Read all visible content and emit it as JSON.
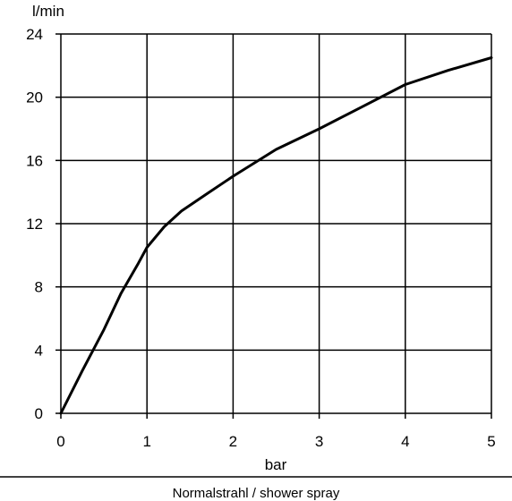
{
  "chart_data": {
    "type": "line",
    "title": "",
    "xlabel": "bar",
    "ylabel": "l/min",
    "caption": "Normalstrahl / shower spray",
    "xlim": [
      0,
      5
    ],
    "ylim": [
      0,
      24
    ],
    "x_ticks": [
      0,
      1,
      2,
      3,
      4,
      5
    ],
    "y_ticks": [
      0,
      4,
      8,
      12,
      16,
      20,
      24
    ],
    "grid": true,
    "legend": "none",
    "colors": {
      "line": "#000000",
      "grid": "#000000",
      "background": "#ffffff"
    },
    "series": [
      {
        "x": [
          0,
          0.25,
          0.5,
          0.7,
          0.9,
          1.0,
          1.2,
          1.4,
          1.7,
          2.0,
          2.5,
          3.0,
          3.5,
          4.0,
          4.5,
          5.0
        ],
        "values": [
          0,
          2.7,
          5.3,
          7.6,
          9.5,
          10.5,
          11.8,
          12.8,
          13.9,
          15.0,
          16.7,
          18.0,
          19.4,
          20.8,
          21.7,
          22.5
        ]
      }
    ]
  }
}
